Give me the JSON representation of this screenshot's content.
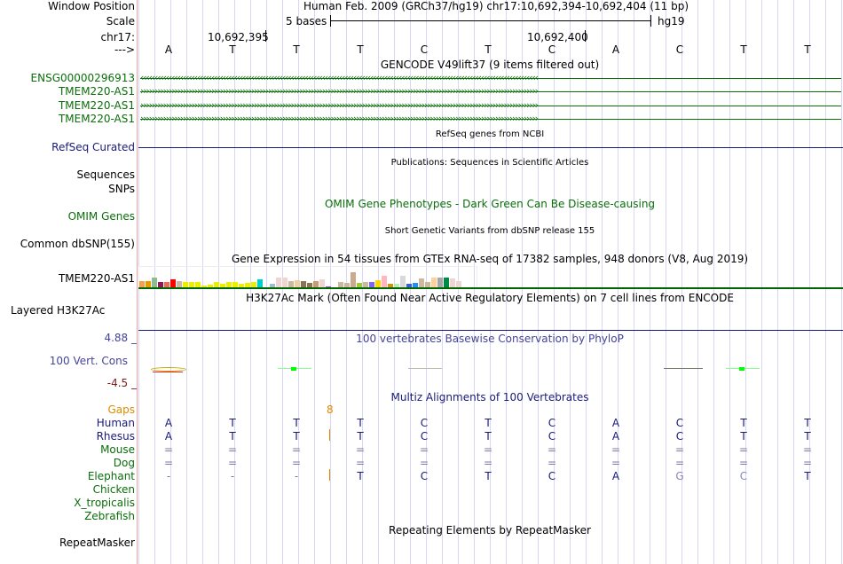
{
  "labels": {
    "window_position": "Window Position",
    "scale": "Scale",
    "chr": "chr17:",
    "strand": "--->",
    "ensg": "ENSG00000296913",
    "tmem1": "TMEM220-AS1",
    "tmem2": "TMEM220-AS1",
    "tmem3": "TMEM220-AS1",
    "refseq": "RefSeq Curated",
    "sequences": "Sequences",
    "snps": "SNPs",
    "omim": "OMIM Genes",
    "dbsnp": "Common dbSNP(155)",
    "gtex": "TMEM220-AS1",
    "h3k27": "Layered H3K27Ac",
    "cons_max": "4.88 _",
    "cons": "100 Vert. Cons",
    "cons_min": "-4.5 _",
    "gaps": "Gaps",
    "repeatmasker": "RepeatMasker"
  },
  "header": {
    "assembly": "Human Feb. 2009 (GRCh37/hg19)   chr17:10,692,394-10,692,404 (11 bp)",
    "scale_label": "5 bases",
    "scale_db": "hg19",
    "pos1": "10,692,395",
    "pos2": "10,692,400"
  },
  "bases": [
    "A",
    "T",
    "T",
    "T",
    "C",
    "T",
    "C",
    "A",
    "C",
    "T",
    "T"
  ],
  "tracks": {
    "gencode": "GENCODE V49lift37 (9 items filtered out)",
    "refseq": "RefSeq genes from NCBI",
    "pubs": "Publications: Sequences in Scientific Articles",
    "omim": "OMIM Gene Phenotypes - Dark Green Can Be Disease-causing",
    "dbsnp": "Short Genetic Variants from dbSNP release 155",
    "gtex": "Gene Expression in 54 tissues from GTEx RNA-seq of 17382 samples, 948 donors (V8, Aug 2019)",
    "h3k27": "H3K27Ac Mark (Often Found Near Active Regulatory Elements) on 7 cell lines from ENCODE",
    "phylop": "100 vertebrates Basewise Conservation by PhyloP",
    "multiz": "Multiz Alignments of 100 Vertebrates",
    "repeat": "Repeating Elements by RepeatMasker"
  },
  "gene_arrows": {
    "ensg": "‹",
    "tmem": "›"
  },
  "gap_count": "8",
  "species": [
    {
      "name": "Human",
      "row": [
        "A",
        "T",
        "T",
        "T",
        "C",
        "T",
        "C",
        "A",
        "C",
        "T",
        "T"
      ]
    },
    {
      "name": "Rhesus",
      "row": [
        "A",
        "T",
        "T",
        "T",
        "C",
        "T",
        "C",
        "A",
        "C",
        "T",
        "T"
      ]
    },
    {
      "name": "Mouse",
      "row": [
        "=",
        "=",
        "=",
        "=",
        "=",
        "=",
        "=",
        "=",
        "=",
        "=",
        "="
      ]
    },
    {
      "name": "Dog",
      "row": [
        "=",
        "=",
        "=",
        "=",
        "=",
        "=",
        "=",
        "=",
        "=",
        "=",
        "="
      ]
    },
    {
      "name": "Elephant",
      "row": [
        "-",
        "-",
        "-",
        "T",
        "C",
        "T",
        "C",
        "A",
        "G",
        "C",
        "T"
      ]
    },
    {
      "name": "Chicken",
      "row": []
    },
    {
      "name": "X_tropicalis",
      "row": []
    },
    {
      "name": "Zebrafish",
      "row": []
    }
  ],
  "gtex_bars": {
    "colors": [
      "#f4a14a",
      "#e69a00",
      "#8fbc8f",
      "#8b1a5a",
      "#ee6a50",
      "#ff0000",
      "#cdb79e",
      "#eeee00",
      "#eeee00",
      "#eeee00",
      "#eeee00",
      "#eeee00",
      "#eeee00",
      "#eeee00",
      "#eeee00",
      "#eeee00",
      "#eeee00",
      "#eeee00",
      "#eeee00",
      "#00cdcd",
      "#ee82ee",
      "#9ac0cd",
      "#eed5d2",
      "#eed5d2",
      "#cdb79e",
      "#eecfa1",
      "#8b7355",
      "#8b7355",
      "#cd9b6b",
      "#eed5d2",
      "#b23aee",
      "#7a378b",
      "#cdb79e",
      "#cdb79e",
      "#cdaa8d",
      "#9acd32",
      "#cdb79e",
      "#7b68ee",
      "#ffd700",
      "#ffb6c1",
      "#cd950c",
      "#b4eeb4",
      "#d9d9d9",
      "#3a5fcd",
      "#1e90ff",
      "#cdb79e",
      "#cdb79e",
      "#fcd19c",
      "#a6a6a6",
      "#008b45",
      "#eed5d2",
      "#eed5d2",
      "#ff00ff",
      "#eed5d2"
    ],
    "values": [
      0.35,
      0.33,
      0.5,
      0.3,
      0.28,
      0.4,
      0.33,
      0.28,
      0.28,
      0.28,
      0.12,
      0.15,
      0.28,
      0.22,
      0.28,
      0.28,
      0.22,
      0.27,
      0.28,
      0.42,
      0.05,
      0.2,
      0.5,
      0.5,
      0.33,
      0.37,
      0.33,
      0.25,
      0.33,
      0.43,
      0.08,
      0.05,
      0.28,
      0.25,
      0.75,
      0.25,
      0.3,
      0.28,
      0.37,
      0.58,
      0.22,
      0.2,
      0.58,
      0.22,
      0.25,
      0.45,
      0.3,
      0.52,
      0.5,
      0.5,
      0.45,
      0.33,
      0.05,
      0.0
    ]
  }
}
